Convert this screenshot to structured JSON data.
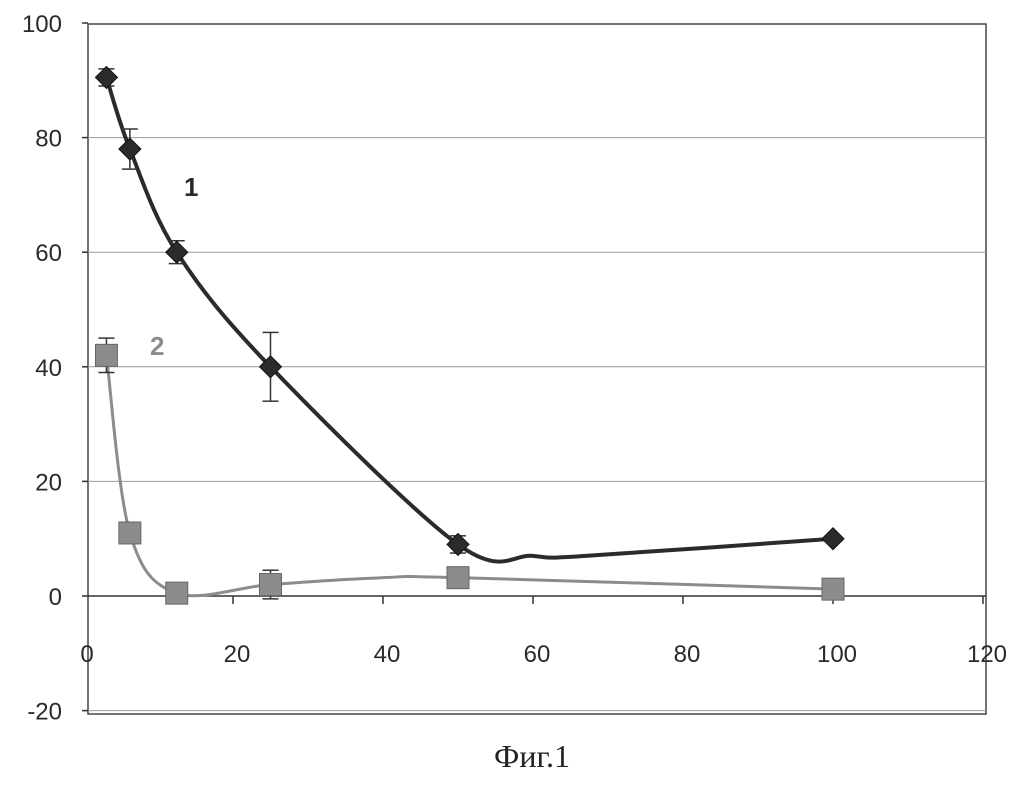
{
  "chart_data": {
    "type": "scatter",
    "title": "",
    "xlabel": "",
    "ylabel": "",
    "xlim": [
      0,
      120
    ],
    "ylim": [
      -20,
      100
    ],
    "x_ticks": [
      0,
      20,
      40,
      60,
      80,
      100,
      120
    ],
    "y_ticks": [
      -20,
      0,
      20,
      40,
      60,
      80,
      100
    ],
    "grid": "horizontal",
    "legend": "none",
    "series": [
      {
        "name": "1",
        "marker": "diamond",
        "color": "#2b2b2b",
        "x": [
          3.125,
          6.25,
          12.5,
          25,
          50,
          100
        ],
        "y": [
          90.5,
          78,
          60,
          40,
          9,
          10
        ],
        "err": [
          1.5,
          3.5,
          2,
          6,
          1.5,
          0
        ],
        "curve_x": [
          3.125,
          6.25,
          12.5,
          25,
          50,
          60,
          67,
          100
        ],
        "curve_y": [
          90.5,
          78,
          60,
          40,
          9,
          7,
          7,
          10
        ]
      },
      {
        "name": "2",
        "marker": "square",
        "color": "#8c8c8c",
        "x": [
          3.125,
          6.25,
          12.5,
          25,
          50,
          100
        ],
        "y": [
          42,
          11,
          0.5,
          2,
          3.2,
          1.2
        ],
        "err": [
          3,
          0,
          0,
          2.5,
          0,
          0
        ],
        "curve_x": [
          3.125,
          6.25,
          12.5,
          25,
          40,
          50,
          100
        ],
        "curve_y": [
          42,
          11,
          0.5,
          2,
          3.2,
          3.2,
          1.2
        ]
      }
    ]
  },
  "caption": "Фиг.1"
}
